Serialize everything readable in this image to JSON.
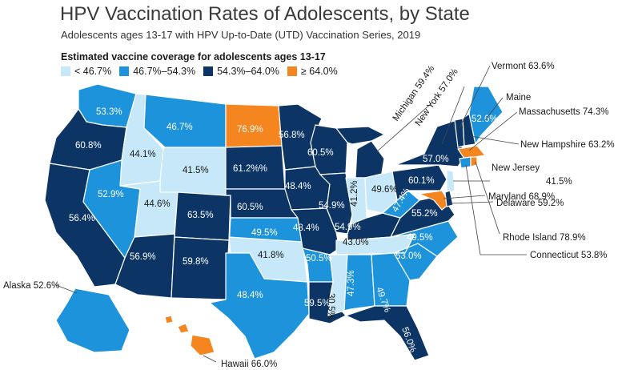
{
  "title": "HPV Vaccination Rates of Adolescents, by State",
  "subtitle": "Adolescents ages 13-17 with HPV Up-to-Date (UTD) Vaccination Series, 2019",
  "legend": {
    "title": "Estimated vaccine coverage for adolescents ages 13-17",
    "items": [
      {
        "label": "< 46.7%",
        "color": "#c6e8f8"
      },
      {
        "label": "46.7%–54.3%",
        "color": "#1d93db"
      },
      {
        "label": "54.3%–64.0%",
        "color": "#0c3566"
      },
      {
        "label": "≥ 64.0%",
        "color": "#f4851f"
      }
    ]
  },
  "states": {
    "WA": "53.3%",
    "OR": "60.8%",
    "CA": "56.4%",
    "ID": "44.1%",
    "NV": "52.9%",
    "MT": "46.7%",
    "WY": "41.5%",
    "UT": "44.6%",
    "AZ": "56.9%",
    "CO": "63.5%",
    "NM": "59.8%",
    "ND": "76.9%",
    "SD": "61.2%%",
    "NE": "60.5%",
    "KS": "49.5%",
    "OK": "41.8%",
    "TX": "48.4%",
    "MN": "56.8%",
    "IA": "48.4%",
    "MO": "48.4%",
    "AR": "50.5%",
    "LA": "59.5%",
    "WI": "60.5%",
    "IL": "54.9%",
    "MS": "30.5%",
    "IN": "41.2%",
    "OH": "49.6%",
    "KY": "54.9%",
    "TN": "43.0%",
    "AL": "47.3%",
    "GA": "49.7%",
    "FL": "56.0%",
    "SC": "53.0%",
    "NC": "49.5%",
    "VA": "55.2%",
    "WV": "47.4%",
    "PA": "60.1%",
    "NY": "57.0%",
    "ME": "52.6%"
  },
  "callouts": {
    "michigan": "Michigan 59.4%",
    "new_york": "New York 57.0%",
    "vermont": "Vermont 63.6%",
    "maine": "Maine",
    "massachusetts": "Massachusetts 74.3%",
    "new_hampshire": "New Hampshire 63.2%",
    "new_jersey": "New Jersey",
    "new_jersey_value": "41.5%",
    "maryland": "Maryland 68.9%",
    "delaware": "Delaware 59.2%",
    "rhode_island": "Rhode Island 78.9%",
    "connecticut": "Connecticut 53.8%",
    "alaska": "Alaska 52.6%",
    "hawaii": "Hawaii 66.0%"
  }
}
